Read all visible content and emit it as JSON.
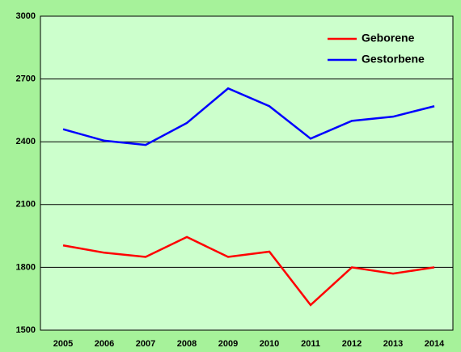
{
  "chart_data": {
    "type": "line",
    "categories": [
      "2005",
      "2006",
      "2007",
      "2008",
      "2009",
      "2010",
      "2011",
      "2012",
      "2013",
      "2014"
    ],
    "series": [
      {
        "name": "Geborene",
        "color": "#ff0000",
        "values": [
          1905,
          1870,
          1850,
          1945,
          1850,
          1875,
          1620,
          1800,
          1770,
          1800
        ]
      },
      {
        "name": "Gestorbene",
        "color": "#0000ff",
        "values": [
          2460,
          2405,
          2385,
          2490,
          2655,
          2570,
          2415,
          2500,
          2520,
          2570
        ]
      }
    ],
    "ylim": [
      1500,
      3000
    ],
    "yticks": [
      1500,
      1800,
      2100,
      2400,
      2700,
      3000
    ],
    "grid": true,
    "legend": "top-right"
  }
}
